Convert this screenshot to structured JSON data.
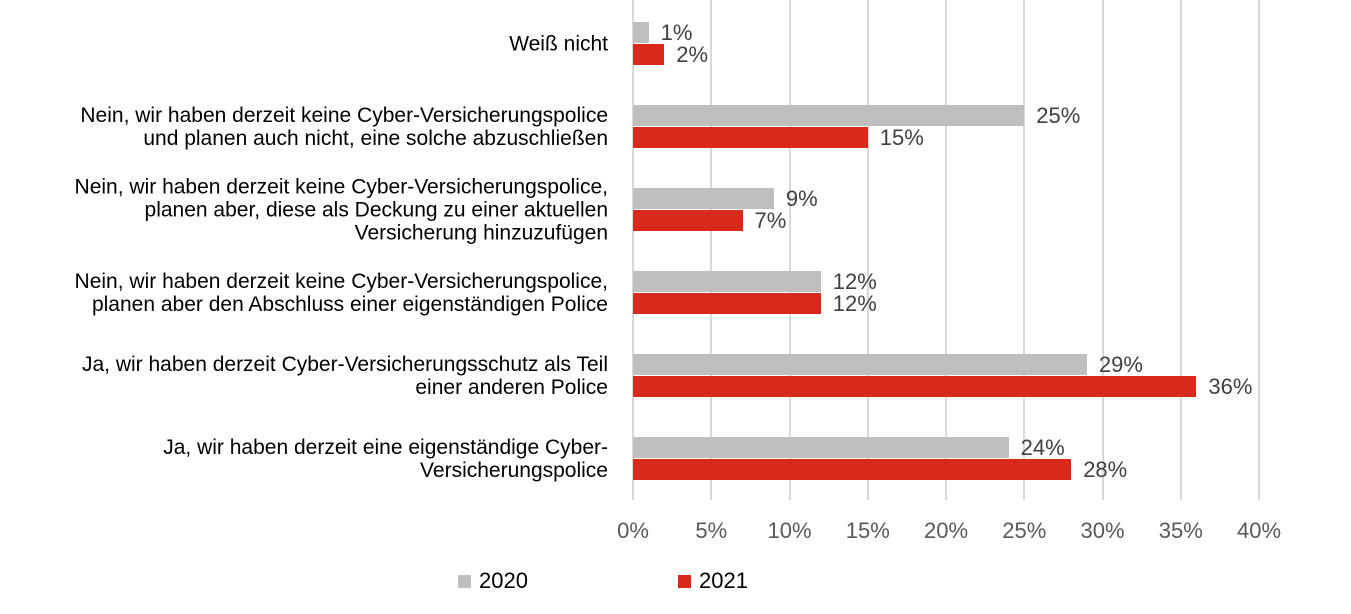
{
  "chart_data": {
    "type": "bar",
    "orientation": "horizontal",
    "title": "",
    "xlabel": "",
    "ylabel": "",
    "categories": [
      "Weiß nicht",
      "Nein, wir haben derzeit keine Cyber-Versicherungspolice\nund planen auch nicht, eine solche abzuschließen",
      "Nein, wir haben derzeit keine Cyber-Versicherungspolice,\nplanen aber, diese als Deckung zu einer aktuellen\nVersicherung hinzuzufügen",
      "Nein, wir haben derzeit keine Cyber-Versicherungspolice,\nplanen aber den Abschluss einer eigenständigen Police",
      "Ja, wir haben derzeit Cyber-Versicherungsschutz als Teil\neiner anderen Police",
      "Ja, wir haben derzeit eine eigenständige Cyber-\nVersicherungspolice"
    ],
    "series": [
      {
        "name": "2020",
        "color": "#bfbfbf",
        "values": [
          1,
          25,
          9,
          12,
          29,
          24
        ]
      },
      {
        "name": "2021",
        "color": "#d9291c",
        "values": [
          2,
          15,
          7,
          12,
          36,
          28
        ]
      }
    ],
    "xlim": [
      0,
      40
    ],
    "xticks": [
      "0%",
      "5%",
      "10%",
      "15%",
      "20%",
      "25%",
      "30%",
      "35%",
      "40%"
    ],
    "value_suffix": "%",
    "grid": true,
    "legend": "bottom"
  }
}
